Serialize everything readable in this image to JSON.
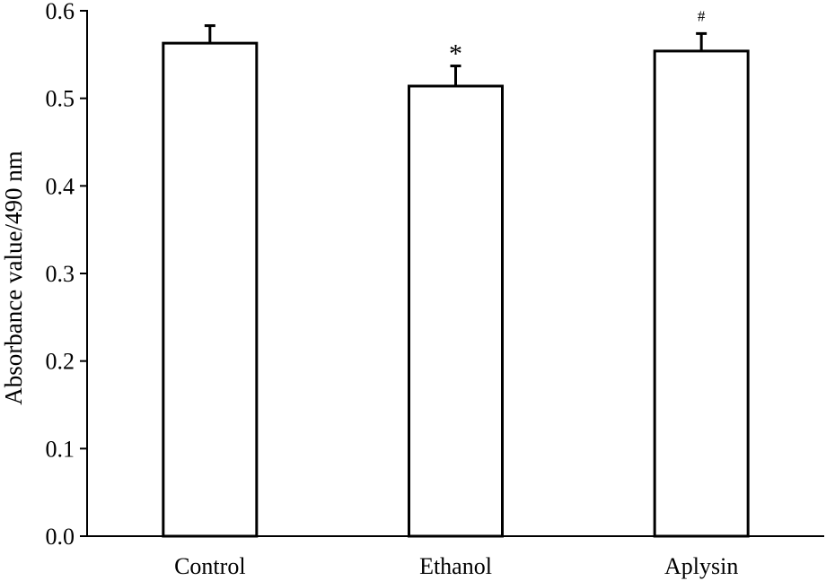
{
  "chart_data": {
    "type": "bar",
    "categories": [
      "Control",
      "Ethanol",
      "Aplysin"
    ],
    "values": [
      0.563,
      0.514,
      0.554
    ],
    "errors": [
      0.02,
      0.023,
      0.02
    ],
    "annotations": [
      "",
      "*",
      "#"
    ],
    "ylabel": "Absorbance value/490 nm",
    "xlabel": "",
    "ylim": [
      0.0,
      0.6
    ],
    "yticks": [
      "0.0",
      "0.1",
      "0.2",
      "0.3",
      "0.4",
      "0.5",
      "0.6"
    ],
    "grid": false
  }
}
